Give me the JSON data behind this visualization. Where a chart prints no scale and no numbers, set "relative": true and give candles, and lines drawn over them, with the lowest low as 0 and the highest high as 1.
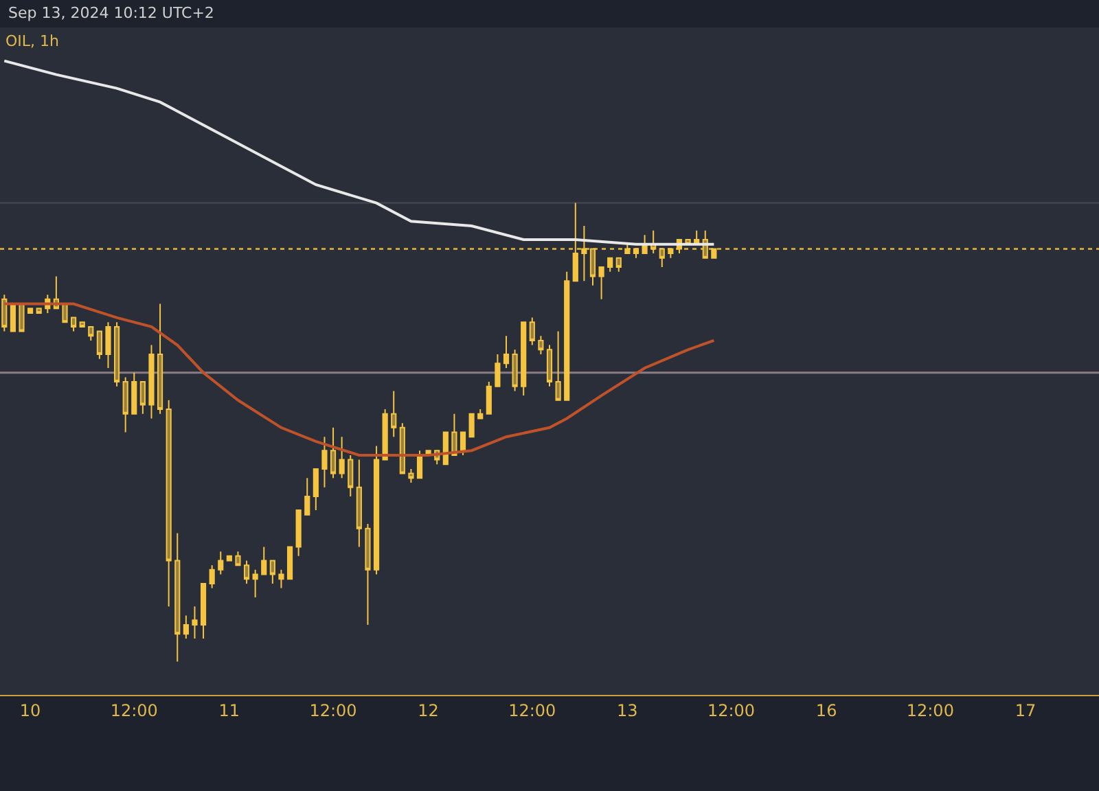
{
  "chart_data": {
    "type": "candlestick",
    "title": "OIL, 1h",
    "annotations": [
      "Sep 13, 2024 10:12 UTC+2"
    ],
    "relative": true,
    "color": "#f5c542",
    "tick_labels": "x",
    "grid": false,
    "categories": [
      null,
      null,
      null,
      "10",
      null,
      null,
      null,
      null,
      null,
      null,
      null,
      null,
      null,
      null,
      null,
      "12:00",
      null,
      null,
      null,
      null,
      null,
      null,
      null,
      null,
      null,
      null,
      "11",
      null,
      null,
      null,
      null,
      null,
      null,
      null,
      null,
      null,
      null,
      null,
      "12:00",
      null,
      null,
      null,
      null,
      null,
      null,
      null,
      null,
      null,
      null,
      "12",
      null,
      null,
      null,
      null,
      null,
      null,
      null,
      null,
      null,
      null,
      null,
      "12:00",
      null,
      null,
      null,
      null,
      null,
      null,
      null,
      null,
      null,
      null,
      "13",
      null,
      null,
      null,
      null,
      null,
      null,
      null,
      null,
      null,
      null,
      null,
      "12:00",
      null,
      null,
      null,
      null,
      null,
      null,
      null,
      null,
      null,
      null,
      "16",
      null,
      null,
      null,
      null,
      null,
      null,
      null,
      null,
      null,
      null,
      null,
      "12:00",
      null,
      null,
      null,
      null,
      null,
      null,
      null,
      null,
      null,
      null,
      "17",
      null,
      null,
      null,
      null,
      null,
      null,
      null,
      null
    ],
    "ohlc": [
      [
        0.79,
        0.8,
        0.72,
        0.73
      ],
      [
        0.72,
        0.78,
        0.72,
        0.78
      ],
      [
        0.78,
        0.78,
        0.72,
        0.72
      ],
      [
        0.76,
        0.77,
        0.76,
        0.77
      ],
      [
        0.77,
        0.77,
        0.76,
        0.76
      ],
      [
        0.77,
        0.8,
        0.76,
        0.79
      ],
      [
        0.79,
        0.84,
        0.77,
        0.77
      ],
      [
        0.78,
        0.78,
        0.74,
        0.74
      ],
      [
        0.75,
        0.75,
        0.72,
        0.73
      ],
      [
        0.74,
        0.74,
        0.73,
        0.73
      ],
      [
        0.73,
        0.73,
        0.7,
        0.71
      ],
      [
        0.72,
        0.72,
        0.66,
        0.67
      ],
      [
        0.67,
        0.74,
        0.64,
        0.73
      ],
      [
        0.73,
        0.74,
        0.6,
        0.61
      ],
      [
        0.61,
        0.62,
        0.5,
        0.54
      ],
      [
        0.54,
        0.63,
        0.54,
        0.61
      ],
      [
        0.61,
        0.61,
        0.54,
        0.56
      ],
      [
        0.56,
        0.69,
        0.53,
        0.67
      ],
      [
        0.67,
        0.78,
        0.54,
        0.55
      ],
      [
        0.55,
        0.57,
        0.12,
        0.22
      ],
      [
        0.22,
        0.28,
        0,
        0.06
      ],
      [
        0.06,
        0.1,
        0.05,
        0.08
      ],
      [
        0.08,
        0.12,
        0.05,
        0.09
      ],
      [
        0.08,
        0.17,
        0.05,
        0.17
      ],
      [
        0.17,
        0.21,
        0.16,
        0.2
      ],
      [
        0.2,
        0.24,
        0.19,
        0.22
      ],
      [
        0.22,
        0.23,
        0.22,
        0.23
      ],
      [
        0.23,
        0.24,
        0.21,
        0.21
      ],
      [
        0.21,
        0.22,
        0.17,
        0.18
      ],
      [
        0.18,
        0.2,
        0.14,
        0.19
      ],
      [
        0.19,
        0.25,
        0.19,
        0.22
      ],
      [
        0.22,
        0.22,
        0.17,
        0.19
      ],
      [
        0.18,
        0.2,
        0.16,
        0.19
      ],
      [
        0.18,
        0.25,
        0.18,
        0.25
      ],
      [
        0.25,
        0.33,
        0.23,
        0.33
      ],
      [
        0.32,
        0.4,
        0.32,
        0.36
      ],
      [
        0.36,
        0.42,
        0.33,
        0.42
      ],
      [
        0.42,
        0.49,
        0.38,
        0.46
      ],
      [
        0.46,
        0.51,
        0.4,
        0.41
      ],
      [
        0.41,
        0.49,
        0.4,
        0.44
      ],
      [
        0.44,
        0.45,
        0.36,
        0.38
      ],
      [
        0.38,
        0.44,
        0.25,
        0.29
      ],
      [
        0.29,
        0.3,
        0.08,
        0.2
      ],
      [
        0.2,
        0.47,
        0.19,
        0.44
      ],
      [
        0.44,
        0.55,
        0.44,
        0.54
      ],
      [
        0.54,
        0.59,
        0.49,
        0.51
      ],
      [
        0.51,
        0.52,
        0.41,
        0.41
      ],
      [
        0.41,
        0.42,
        0.39,
        0.4
      ],
      [
        0.4,
        0.46,
        0.4,
        0.45
      ],
      [
        0.45,
        0.46,
        0.45,
        0.46
      ],
      [
        0.46,
        0.46,
        0.43,
        0.44
      ],
      [
        0.43,
        0.5,
        0.43,
        0.5
      ],
      [
        0.5,
        0.54,
        0.45,
        0.45
      ],
      [
        0.46,
        0.5,
        0.45,
        0.5
      ],
      [
        0.49,
        0.54,
        0.49,
        0.54
      ],
      [
        0.53,
        0.55,
        0.53,
        0.54
      ],
      [
        0.54,
        0.61,
        0.54,
        0.6
      ],
      [
        0.6,
        0.67,
        0.6,
        0.65
      ],
      [
        0.65,
        0.71,
        0.64,
        0.67
      ],
      [
        0.67,
        0.68,
        0.59,
        0.6
      ],
      [
        0.6,
        0.74,
        0.58,
        0.74
      ],
      [
        0.74,
        0.75,
        0.69,
        0.7
      ],
      [
        0.7,
        0.71,
        0.67,
        0.68
      ],
      [
        0.68,
        0.69,
        0.6,
        0.61
      ],
      [
        0.61,
        0.72,
        0.57,
        0.57
      ],
      [
        0.57,
        0.85,
        0.57,
        0.83
      ],
      [
        0.83,
        1,
        0.83,
        0.89
      ],
      [
        0.89,
        0.95,
        0.83,
        0.9
      ],
      [
        0.9,
        0.9,
        0.82,
        0.84
      ],
      [
        0.84,
        0.86,
        0.79,
        0.86
      ],
      [
        0.86,
        0.88,
        0.85,
        0.88
      ],
      [
        0.88,
        0.88,
        0.85,
        0.86
      ],
      [
        0.89,
        0.91,
        0.89,
        0.9
      ],
      [
        0.89,
        0.9,
        0.88,
        0.9
      ],
      [
        0.89,
        0.93,
        0.89,
        0.91
      ],
      [
        0.91,
        0.94,
        0.89,
        0.9
      ],
      [
        0.9,
        0.9,
        0.86,
        0.88
      ],
      [
        0.89,
        0.9,
        0.88,
        0.9
      ],
      [
        0.9,
        0.92,
        0.89,
        0.92
      ],
      [
        0.92,
        0.92,
        0.91,
        0.91
      ],
      [
        0.91,
        0.94,
        0.91,
        0.92
      ],
      [
        0.92,
        0.94,
        0.88,
        0.88
      ],
      [
        0.88,
        0.9,
        0.88,
        0.9
      ],
      null,
      null,
      null,
      null,
      null,
      null,
      null,
      null,
      null,
      null,
      null,
      null,
      null,
      null,
      null,
      null,
      null,
      null,
      null,
      null,
      null,
      null,
      null,
      null,
      null,
      null,
      null,
      null,
      null,
      null,
      null,
      null,
      null,
      null,
      null,
      null,
      null,
      null,
      null,
      null,
      null,
      null,
      null,
      null
    ],
    "series": [
      {
        "type": "line",
        "color": "#e8e8e8",
        "values": [
          1.31,
          null,
          null,
          null,
          null,
          null,
          1.28,
          null,
          null,
          null,
          null,
          null,
          null,
          1.25,
          null,
          null,
          null,
          null,
          1.22,
          null,
          null,
          null,
          null,
          null,
          1.16,
          null,
          null,
          null,
          null,
          null,
          null,
          null,
          1.08,
          null,
          null,
          null,
          1.04,
          null,
          null,
          null,
          null,
          null,
          null,
          1.0,
          null,
          null,
          null,
          0.96,
          null,
          null,
          null,
          null,
          null,
          null,
          0.95,
          null,
          null,
          null,
          null,
          null,
          0.92,
          null,
          null,
          0.92,
          null,
          null,
          0.92,
          null,
          null,
          null,
          null,
          null,
          null,
          0.91,
          null,
          null,
          null,
          null,
          null,
          null,
          null,
          null,
          0.91,
          null,
          null,
          null,
          null,
          null,
          null,
          null,
          null,
          null,
          null,
          null,
          null,
          null,
          null,
          null,
          null,
          null,
          null,
          null,
          null,
          null,
          null,
          null,
          null,
          null,
          null,
          null,
          null,
          null,
          null,
          null,
          null,
          null,
          null,
          null,
          null,
          null,
          null,
          null,
          null,
          null,
          null,
          null,
          null
        ]
      },
      {
        "type": "line",
        "color": "#c0522a",
        "values": [
          0.78,
          null,
          null,
          null,
          null,
          0.78,
          null,
          null,
          0.78,
          null,
          null,
          null,
          null,
          0.75,
          null,
          null,
          null,
          0.73,
          null,
          null,
          0.69,
          null,
          null,
          0.63,
          null,
          null,
          null,
          0.57,
          null,
          null,
          null,
          null,
          0.51,
          null,
          null,
          null,
          0.48,
          null,
          null,
          null,
          null,
          0.45,
          null,
          null,
          0.45,
          null,
          null,
          null,
          null,
          0.45,
          null,
          null,
          null,
          null,
          0.46,
          null,
          null,
          null,
          0.49,
          null,
          null,
          null,
          null,
          0.51,
          null,
          0.53,
          null,
          null,
          null,
          0.58,
          null,
          null,
          null,
          null,
          0.64,
          null,
          null,
          null,
          null,
          0.68,
          null,
          null,
          0.7,
          null,
          null,
          null,
          null,
          null,
          null,
          null,
          null,
          null,
          null,
          null,
          null,
          null,
          null,
          null,
          null,
          null,
          null,
          null,
          null,
          null,
          null,
          null,
          null,
          null,
          null,
          null,
          null,
          null,
          null,
          null,
          null,
          null,
          null,
          null,
          null,
          null,
          null,
          null,
          null,
          null,
          null,
          null,
          null
        ]
      }
    ],
    "ref_lines": [
      {
        "axis": "y",
        "value": 1.0,
        "color": "#3d414c",
        "line_style": "solid"
      },
      {
        "axis": "y",
        "value": 0.9,
        "color": "#c9a23a",
        "line_style": "dotted"
      },
      {
        "axis": "y",
        "value": 0.63,
        "color": "#8c7c84",
        "line_style": "solid"
      }
    ]
  }
}
